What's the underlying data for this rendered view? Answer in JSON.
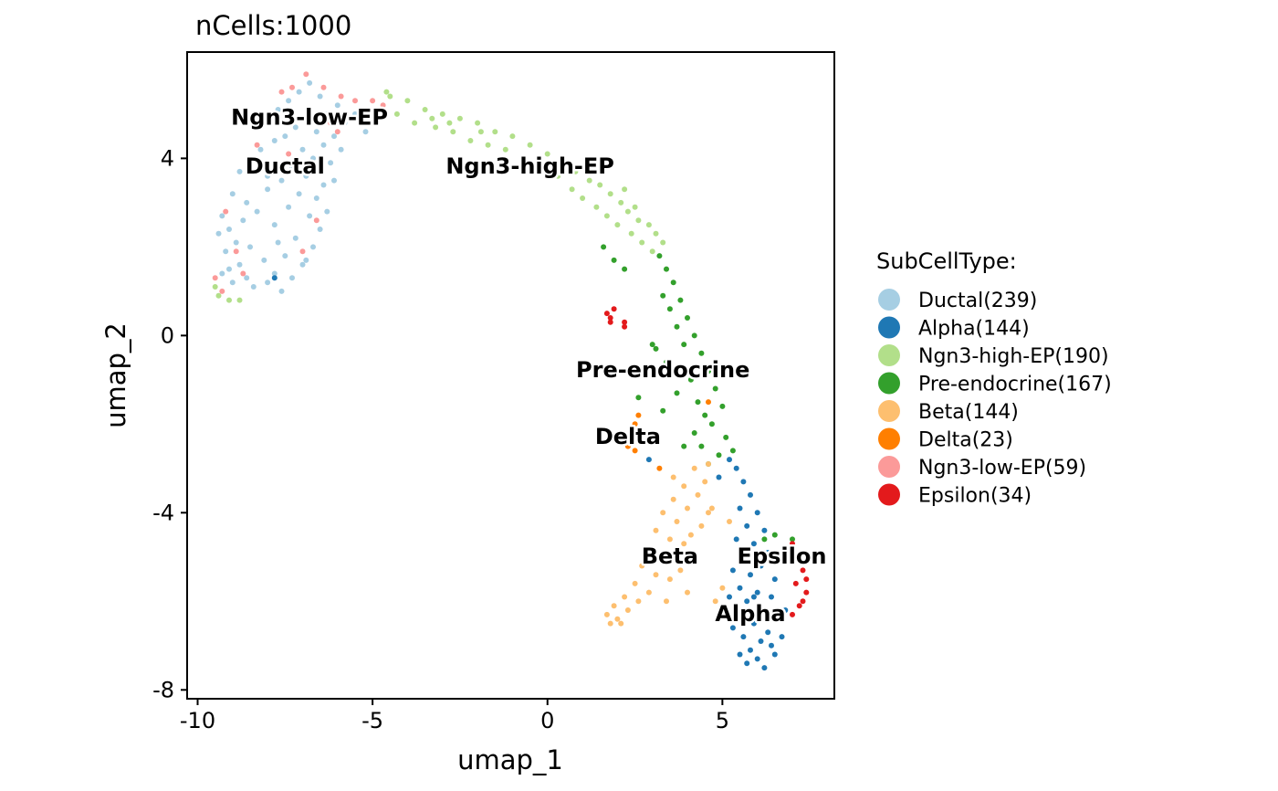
{
  "chart_data": {
    "type": "scatter",
    "title": "nCells:1000",
    "xlabel": "umap_1",
    "ylabel": "umap_2",
    "xlim": [
      -10.3,
      8.2
    ],
    "ylim": [
      -8.2,
      6.4
    ],
    "xticks": [
      -10,
      -5,
      0,
      5
    ],
    "yticks": [
      -8,
      -4,
      0,
      4
    ],
    "grid": false,
    "legend_placement": "right",
    "legend_title": "SubCellType:",
    "series": [
      {
        "name": "Ductal(239)",
        "label": "Ductal",
        "label_pos": [
          -7.5,
          3.8
        ],
        "color": "#A6CEE3",
        "points": [
          [
            -6.8,
            5.7
          ],
          [
            -7.1,
            5.5
          ],
          [
            -6.5,
            5.4
          ],
          [
            -6.0,
            5.2
          ],
          [
            -7.4,
            5.3
          ],
          [
            -7.7,
            5.1
          ],
          [
            -6.3,
            5.0
          ],
          [
            -6.9,
            4.9
          ],
          [
            -7.2,
            4.7
          ],
          [
            -6.6,
            4.6
          ],
          [
            -5.8,
            4.8
          ],
          [
            -7.5,
            4.5
          ],
          [
            -6.1,
            4.5
          ],
          [
            -6.4,
            4.3
          ],
          [
            -7.0,
            4.2
          ],
          [
            -7.8,
            4.4
          ],
          [
            -6.7,
            4.0
          ],
          [
            -6.2,
            3.9
          ],
          [
            -7.3,
            3.8
          ],
          [
            -8.2,
            4.2
          ],
          [
            -8.5,
            3.9
          ],
          [
            -6.9,
            3.6
          ],
          [
            -7.6,
            3.5
          ],
          [
            -8.8,
            3.7
          ],
          [
            -6.4,
            3.4
          ],
          [
            -7.1,
            3.2
          ],
          [
            -8.0,
            3.3
          ],
          [
            -8.6,
            3.0
          ],
          [
            -9.0,
            3.2
          ],
          [
            -6.6,
            3.1
          ],
          [
            -7.4,
            2.9
          ],
          [
            -8.3,
            2.8
          ],
          [
            -9.3,
            2.7
          ],
          [
            -9.1,
            2.4
          ],
          [
            -6.8,
            2.7
          ],
          [
            -7.8,
            2.5
          ],
          [
            -8.9,
            2.1
          ],
          [
            -9.4,
            2.3
          ],
          [
            -6.5,
            2.4
          ],
          [
            -7.2,
            2.2
          ],
          [
            -8.5,
            2.0
          ],
          [
            -9.2,
            1.9
          ],
          [
            -6.7,
            2.0
          ],
          [
            -7.5,
            1.8
          ],
          [
            -8.1,
            1.7
          ],
          [
            -8.8,
            1.6
          ],
          [
            -9.1,
            1.5
          ],
          [
            -7.0,
            1.6
          ],
          [
            -7.8,
            1.4
          ],
          [
            -8.6,
            1.3
          ],
          [
            -9.0,
            1.2
          ],
          [
            -6.9,
            1.7
          ],
          [
            -7.3,
            1.3
          ],
          [
            -8.4,
            1.1
          ],
          [
            -8.0,
            1.2
          ],
          [
            -7.6,
            1.0
          ],
          [
            -9.3,
            1.4
          ],
          [
            -6.3,
            2.8
          ],
          [
            -6.1,
            3.5
          ],
          [
            -5.9,
            4.2
          ],
          [
            -5.5,
            5.0
          ],
          [
            -5.2,
            4.6
          ],
          [
            -7.9,
            4.9
          ],
          [
            -8.0,
            3.6
          ],
          [
            -7.7,
            2.1
          ],
          [
            -8.7,
            2.6
          ]
        ]
      },
      {
        "name": "Alpha(144)",
        "label": "Alpha",
        "label_pos": [
          5.8,
          -6.3
        ],
        "color": "#1F78B4",
        "points": [
          [
            5.4,
            -3.0
          ],
          [
            5.6,
            -3.3
          ],
          [
            5.8,
            -3.6
          ],
          [
            5.5,
            -3.9
          ],
          [
            6.0,
            -4.0
          ],
          [
            5.7,
            -4.3
          ],
          [
            6.2,
            -4.4
          ],
          [
            5.4,
            -4.6
          ],
          [
            5.9,
            -4.7
          ],
          [
            6.3,
            -4.9
          ],
          [
            5.6,
            -5.0
          ],
          [
            6.1,
            -5.2
          ],
          [
            5.3,
            -5.3
          ],
          [
            5.8,
            -5.4
          ],
          [
            6.5,
            -5.5
          ],
          [
            5.5,
            -5.7
          ],
          [
            6.0,
            -5.8
          ],
          [
            6.4,
            -5.9
          ],
          [
            5.7,
            -6.0
          ],
          [
            6.2,
            -6.2
          ],
          [
            5.4,
            -6.3
          ],
          [
            6.6,
            -6.4
          ],
          [
            5.9,
            -6.5
          ],
          [
            6.3,
            -6.7
          ],
          [
            5.6,
            -6.8
          ],
          [
            6.1,
            -6.9
          ],
          [
            5.8,
            -7.1
          ],
          [
            6.4,
            -7.0
          ],
          [
            5.5,
            -7.2
          ],
          [
            6.0,
            -7.3
          ],
          [
            6.2,
            -7.5
          ],
          [
            5.7,
            -7.4
          ],
          [
            6.5,
            -7.2
          ],
          [
            5.3,
            -6.6
          ],
          [
            6.7,
            -6.8
          ],
          [
            5.9,
            -5.9
          ],
          [
            6.8,
            -6.2
          ],
          [
            5.2,
            -5.9
          ],
          [
            6.6,
            -5.1
          ],
          [
            5.6,
            -4.8
          ],
          [
            4.9,
            -3.2
          ],
          [
            5.2,
            -2.8
          ],
          [
            2.9,
            -2.8
          ],
          [
            -7.8,
            1.3
          ]
        ]
      },
      {
        "name": "Ngn3-high-EP(190)",
        "label": "Ngn3-high-EP",
        "label_pos": [
          -0.5,
          3.8
        ],
        "color": "#B2DF8A",
        "points": [
          [
            -4.5,
            5.4
          ],
          [
            -4.0,
            5.3
          ],
          [
            -3.5,
            5.1
          ],
          [
            -3.0,
            5.0
          ],
          [
            -2.5,
            4.9
          ],
          [
            -2.0,
            4.8
          ],
          [
            -1.5,
            4.6
          ],
          [
            -1.0,
            4.5
          ],
          [
            -0.5,
            4.3
          ],
          [
            0.0,
            4.1
          ],
          [
            0.5,
            3.9
          ],
          [
            0.8,
            3.7
          ],
          [
            1.2,
            3.5
          ],
          [
            1.5,
            3.4
          ],
          [
            1.8,
            3.2
          ],
          [
            2.1,
            3.0
          ],
          [
            2.3,
            2.8
          ],
          [
            2.6,
            2.6
          ],
          [
            2.9,
            2.5
          ],
          [
            3.1,
            2.3
          ],
          [
            3.3,
            2.1
          ],
          [
            -4.3,
            5.0
          ],
          [
            -3.8,
            4.8
          ],
          [
            -3.2,
            4.7
          ],
          [
            -2.7,
            4.6
          ],
          [
            -2.2,
            4.4
          ],
          [
            -1.7,
            4.3
          ],
          [
            -1.2,
            4.2
          ],
          [
            -0.7,
            4.0
          ],
          [
            -0.2,
            3.8
          ],
          [
            0.3,
            3.6
          ],
          [
            0.7,
            3.3
          ],
          [
            1.0,
            3.1
          ],
          [
            1.4,
            2.9
          ],
          [
            1.7,
            2.7
          ],
          [
            2.0,
            2.5
          ],
          [
            2.4,
            2.3
          ],
          [
            2.7,
            2.1
          ],
          [
            3.0,
            1.9
          ],
          [
            1.6,
            3.7
          ],
          [
            2.2,
            3.3
          ],
          [
            2.5,
            2.9
          ],
          [
            -9.4,
            0.9
          ],
          [
            -9.1,
            0.8
          ],
          [
            -9.5,
            1.1
          ],
          [
            -8.8,
            0.8
          ],
          [
            -4.6,
            5.5
          ],
          [
            -3.3,
            4.9
          ],
          [
            -2.8,
            4.8
          ],
          [
            -1.9,
            4.6
          ]
        ]
      },
      {
        "name": "Pre-endocrine(167)",
        "label": "Pre-endocrine",
        "label_pos": [
          3.3,
          -0.8
        ],
        "color": "#33A02C",
        "points": [
          [
            1.6,
            2.0
          ],
          [
            1.9,
            1.7
          ],
          [
            2.2,
            1.5
          ],
          [
            3.2,
            1.8
          ],
          [
            3.4,
            1.5
          ],
          [
            3.6,
            1.2
          ],
          [
            3.3,
            0.9
          ],
          [
            3.8,
            0.8
          ],
          [
            3.5,
            0.6
          ],
          [
            4.0,
            0.4
          ],
          [
            3.7,
            0.2
          ],
          [
            4.2,
            0.0
          ],
          [
            3.9,
            -0.2
          ],
          [
            4.4,
            -0.4
          ],
          [
            3.1,
            -0.3
          ],
          [
            3.4,
            -0.6
          ],
          [
            4.6,
            -0.8
          ],
          [
            4.1,
            -1.0
          ],
          [
            4.8,
            -1.2
          ],
          [
            3.7,
            -1.3
          ],
          [
            4.3,
            -1.5
          ],
          [
            5.0,
            -1.6
          ],
          [
            4.5,
            -1.8
          ],
          [
            3.3,
            -1.7
          ],
          [
            4.7,
            -2.0
          ],
          [
            4.2,
            -2.2
          ],
          [
            5.1,
            -2.3
          ],
          [
            4.4,
            -2.5
          ],
          [
            4.9,
            -2.7
          ],
          [
            3.9,
            -2.5
          ],
          [
            4.6,
            -2.9
          ],
          [
            5.3,
            -2.6
          ],
          [
            2.6,
            -1.4
          ],
          [
            2.9,
            -0.9
          ],
          [
            3.0,
            -0.2
          ],
          [
            6.5,
            -4.5
          ],
          [
            6.8,
            -4.8
          ],
          [
            6.2,
            -4.6
          ],
          [
            7.0,
            -4.6
          ]
        ]
      },
      {
        "name": "Beta(144)",
        "label": "Beta",
        "label_pos": [
          3.5,
          -5.0
        ],
        "color": "#FDBF6F",
        "points": [
          [
            4.2,
            -3.0
          ],
          [
            4.5,
            -3.3
          ],
          [
            3.9,
            -3.4
          ],
          [
            4.3,
            -3.6
          ],
          [
            3.6,
            -3.7
          ],
          [
            4.0,
            -3.9
          ],
          [
            3.3,
            -4.0
          ],
          [
            3.7,
            -4.2
          ],
          [
            4.4,
            -4.3
          ],
          [
            3.1,
            -4.4
          ],
          [
            3.5,
            -4.6
          ],
          [
            3.9,
            -4.7
          ],
          [
            2.9,
            -4.8
          ],
          [
            3.3,
            -5.0
          ],
          [
            3.7,
            -5.1
          ],
          [
            2.7,
            -5.2
          ],
          [
            3.1,
            -5.4
          ],
          [
            3.5,
            -5.5
          ],
          [
            2.5,
            -5.6
          ],
          [
            2.9,
            -5.8
          ],
          [
            2.2,
            -5.9
          ],
          [
            2.6,
            -6.0
          ],
          [
            1.9,
            -6.1
          ],
          [
            2.3,
            -6.2
          ],
          [
            1.7,
            -6.3
          ],
          [
            2.0,
            -6.4
          ],
          [
            1.8,
            -6.5
          ],
          [
            2.1,
            -6.5
          ],
          [
            4.7,
            -3.9
          ],
          [
            4.1,
            -4.5
          ],
          [
            3.8,
            -5.3
          ],
          [
            4.0,
            -5.8
          ],
          [
            3.6,
            -3.2
          ],
          [
            4.6,
            -4.0
          ],
          [
            5.2,
            -4.2
          ],
          [
            5.0,
            -5.7
          ],
          [
            4.8,
            -6.0
          ],
          [
            4.6,
            -2.9
          ],
          [
            3.4,
            -6.0
          ]
        ]
      },
      {
        "name": "Delta(23)",
        "label": "Delta",
        "label_pos": [
          2.3,
          -2.3
        ],
        "color": "#FF7F00",
        "points": [
          [
            2.6,
            -1.8
          ],
          [
            2.5,
            -2.0
          ],
          [
            2.4,
            -2.3
          ],
          [
            2.3,
            -2.5
          ],
          [
            2.5,
            -2.6
          ],
          [
            2.6,
            -2.4
          ],
          [
            2.4,
            -2.1
          ],
          [
            3.2,
            -3.0
          ],
          [
            4.6,
            -1.5
          ],
          [
            2.7,
            -2.2
          ]
        ]
      },
      {
        "name": "Ngn3-low-EP(59)",
        "label": "Ngn3-low-EP",
        "label_pos": [
          -6.8,
          4.9
        ],
        "color": "#FB9A99",
        "points": [
          [
            -6.9,
            5.9
          ],
          [
            -7.3,
            5.6
          ],
          [
            -6.4,
            5.6
          ],
          [
            -7.6,
            5.5
          ],
          [
            -5.9,
            5.4
          ],
          [
            -5.5,
            5.3
          ],
          [
            -5.0,
            5.3
          ],
          [
            -4.7,
            5.2
          ],
          [
            -5.2,
            5.1
          ],
          [
            -7.9,
            5.0
          ],
          [
            -6.2,
            4.8
          ],
          [
            -8.3,
            4.3
          ],
          [
            -7.4,
            4.1
          ],
          [
            -6.0,
            4.6
          ],
          [
            -9.2,
            2.8
          ],
          [
            -8.9,
            1.9
          ],
          [
            -9.5,
            1.3
          ],
          [
            -9.3,
            1.0
          ],
          [
            -8.7,
            1.4
          ],
          [
            -6.6,
            2.6
          ],
          [
            -7.0,
            1.9
          ],
          [
            -4.9,
            4.9
          ]
        ]
      },
      {
        "name": "Epsilon(34)",
        "label": "Epsilon",
        "label_pos": [
          6.7,
          -5.0
        ],
        "color": "#E31A1C",
        "points": [
          [
            1.7,
            0.5
          ],
          [
            1.8,
            0.4
          ],
          [
            1.9,
            0.6
          ],
          [
            1.8,
            0.3
          ],
          [
            2.2,
            0.3
          ],
          [
            2.2,
            0.2
          ],
          [
            7.0,
            -4.7
          ],
          [
            7.2,
            -5.0
          ],
          [
            7.3,
            -5.3
          ],
          [
            7.1,
            -5.6
          ],
          [
            7.4,
            -5.8
          ],
          [
            7.2,
            -6.1
          ],
          [
            7.0,
            -6.3
          ],
          [
            7.3,
            -6.0
          ],
          [
            6.9,
            -5.0
          ],
          [
            7.4,
            -5.5
          ]
        ]
      }
    ]
  }
}
